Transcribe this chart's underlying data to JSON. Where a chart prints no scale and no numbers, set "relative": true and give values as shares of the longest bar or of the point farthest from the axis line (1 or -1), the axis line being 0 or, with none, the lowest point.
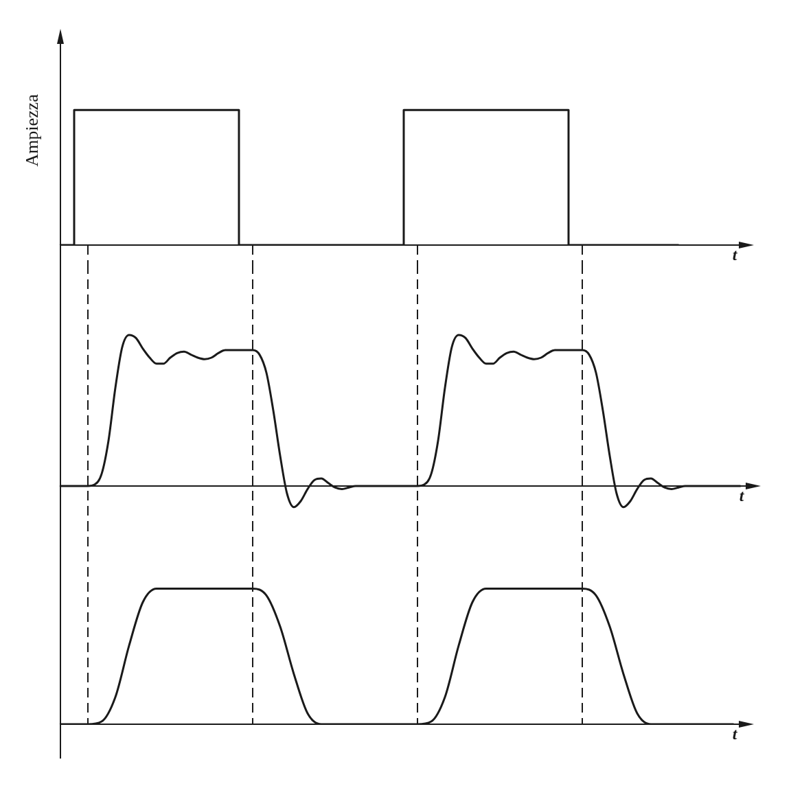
{
  "chart_data": [
    {
      "type": "step",
      "relative": true,
      "ylabel": "Ampiezza",
      "xlabel": "t",
      "color": "#1a1a1a",
      "marker": "none",
      "line_style": "solid",
      "grid": "x",
      "legend": false,
      "categories": [
        null,
        null,
        null,
        null,
        null,
        null,
        null,
        null,
        null,
        null,
        null,
        null,
        null,
        null,
        null,
        null,
        null,
        null,
        null,
        null,
        null,
        null,
        null,
        null,
        null,
        null,
        null,
        null,
        null,
        null,
        null,
        null,
        null,
        null,
        null,
        null,
        null,
        null,
        null,
        null,
        null,
        null,
        null,
        null,
        null,
        null,
        null,
        null,
        null,
        null
      ],
      "values": [
        0,
        0,
        1,
        1,
        1,
        1,
        1,
        1,
        1,
        1,
        1,
        1,
        1,
        1,
        0,
        0,
        0,
        0,
        0,
        0,
        0,
        0,
        0,
        0,
        0,
        0,
        1,
        1,
        1,
        1,
        1,
        1,
        1,
        1,
        1,
        1,
        1,
        1,
        0,
        0,
        0,
        0,
        0,
        0,
        0,
        0,
        null,
        null,
        null,
        null
      ]
    },
    {
      "type": "line",
      "relative": true,
      "xlabel": "t",
      "color": "#1a1a1a",
      "marker": "none",
      "line_style": "solid",
      "grid": "x",
      "legend": false,
      "categories": [
        null,
        null,
        null,
        null,
        null,
        null,
        null,
        null,
        null,
        null,
        null,
        null,
        null,
        null,
        null,
        null,
        null,
        null,
        null,
        null,
        null,
        null,
        null,
        null,
        null,
        null,
        null,
        null,
        null,
        null,
        null,
        null,
        null,
        null,
        null,
        null,
        null,
        null,
        null,
        null,
        null,
        null,
        null,
        null,
        null,
        null,
        null,
        null,
        null,
        null,
        null,
        null,
        null,
        null,
        null,
        null,
        null,
        null,
        null,
        null,
        null,
        null,
        null,
        null,
        null,
        null,
        null,
        null,
        null,
        null,
        null,
        null,
        null,
        null,
        null,
        null,
        null,
        null,
        null,
        null,
        null,
        null,
        null,
        null,
        null,
        null,
        null,
        null,
        null,
        null,
        null,
        null,
        null,
        null,
        null,
        null,
        null,
        null,
        null,
        null
      ],
      "values": [
        0,
        0,
        0,
        0,
        0,
        0.01,
        0.08,
        0.3,
        0.65,
        0.92,
        1,
        0.98,
        0.91,
        0.85,
        0.81,
        0.81,
        0.85,
        0.88,
        0.89,
        0.87,
        0.85,
        0.84,
        0.85,
        0.88,
        0.9,
        0.9,
        0.9,
        0.9,
        0.9,
        0.87,
        0.75,
        0.5,
        0.2,
        -0.05,
        -0.14,
        -0.1,
        -0.02,
        0.04,
        0.05,
        0.02,
        -0.01,
        -0.02,
        -0.01,
        0,
        0,
        0,
        0,
        0,
        0,
        0,
        0,
        0,
        0,
        0.01,
        0.08,
        0.3,
        0.65,
        0.92,
        1,
        0.98,
        0.91,
        0.85,
        0.81,
        0.81,
        0.85,
        0.88,
        0.89,
        0.87,
        0.85,
        0.84,
        0.85,
        0.88,
        0.9,
        0.9,
        0.9,
        0.9,
        0.9,
        0.87,
        0.75,
        0.5,
        0.2,
        -0.05,
        -0.14,
        -0.1,
        -0.02,
        0.04,
        0.05,
        0.02,
        -0.01,
        -0.02,
        -0.01,
        0,
        0,
        0,
        0,
        0,
        0,
        0,
        0,
        0
      ]
    },
    {
      "type": "line",
      "relative": true,
      "xlabel": "t",
      "color": "#1a1a1a",
      "marker": "none",
      "line_style": "solid",
      "grid": "x",
      "legend": false,
      "categories": [
        null,
        null,
        null,
        null,
        null,
        null,
        null,
        null,
        null,
        null,
        null,
        null,
        null,
        null,
        null,
        null,
        null,
        null,
        null,
        null,
        null,
        null,
        null,
        null,
        null,
        null,
        null,
        null,
        null,
        null,
        null,
        null,
        null,
        null,
        null,
        null,
        null,
        null,
        null,
        null,
        null,
        null,
        null,
        null,
        null,
        null,
        null,
        null,
        null,
        null
      ],
      "values": [
        0,
        0,
        0,
        0.02,
        0.2,
        0.58,
        0.9,
        1,
        1,
        1,
        1,
        1,
        1,
        1,
        1,
        0.95,
        0.72,
        0.37,
        0.08,
        0,
        0,
        0,
        0,
        0,
        0,
        0,
        0,
        0.02,
        0.2,
        0.58,
        0.9,
        1,
        1,
        1,
        1,
        1,
        1,
        1,
        1,
        0.95,
        0.72,
        0.37,
        0.08,
        0,
        0,
        0,
        0,
        0,
        0,
        0
      ]
    }
  ]
}
